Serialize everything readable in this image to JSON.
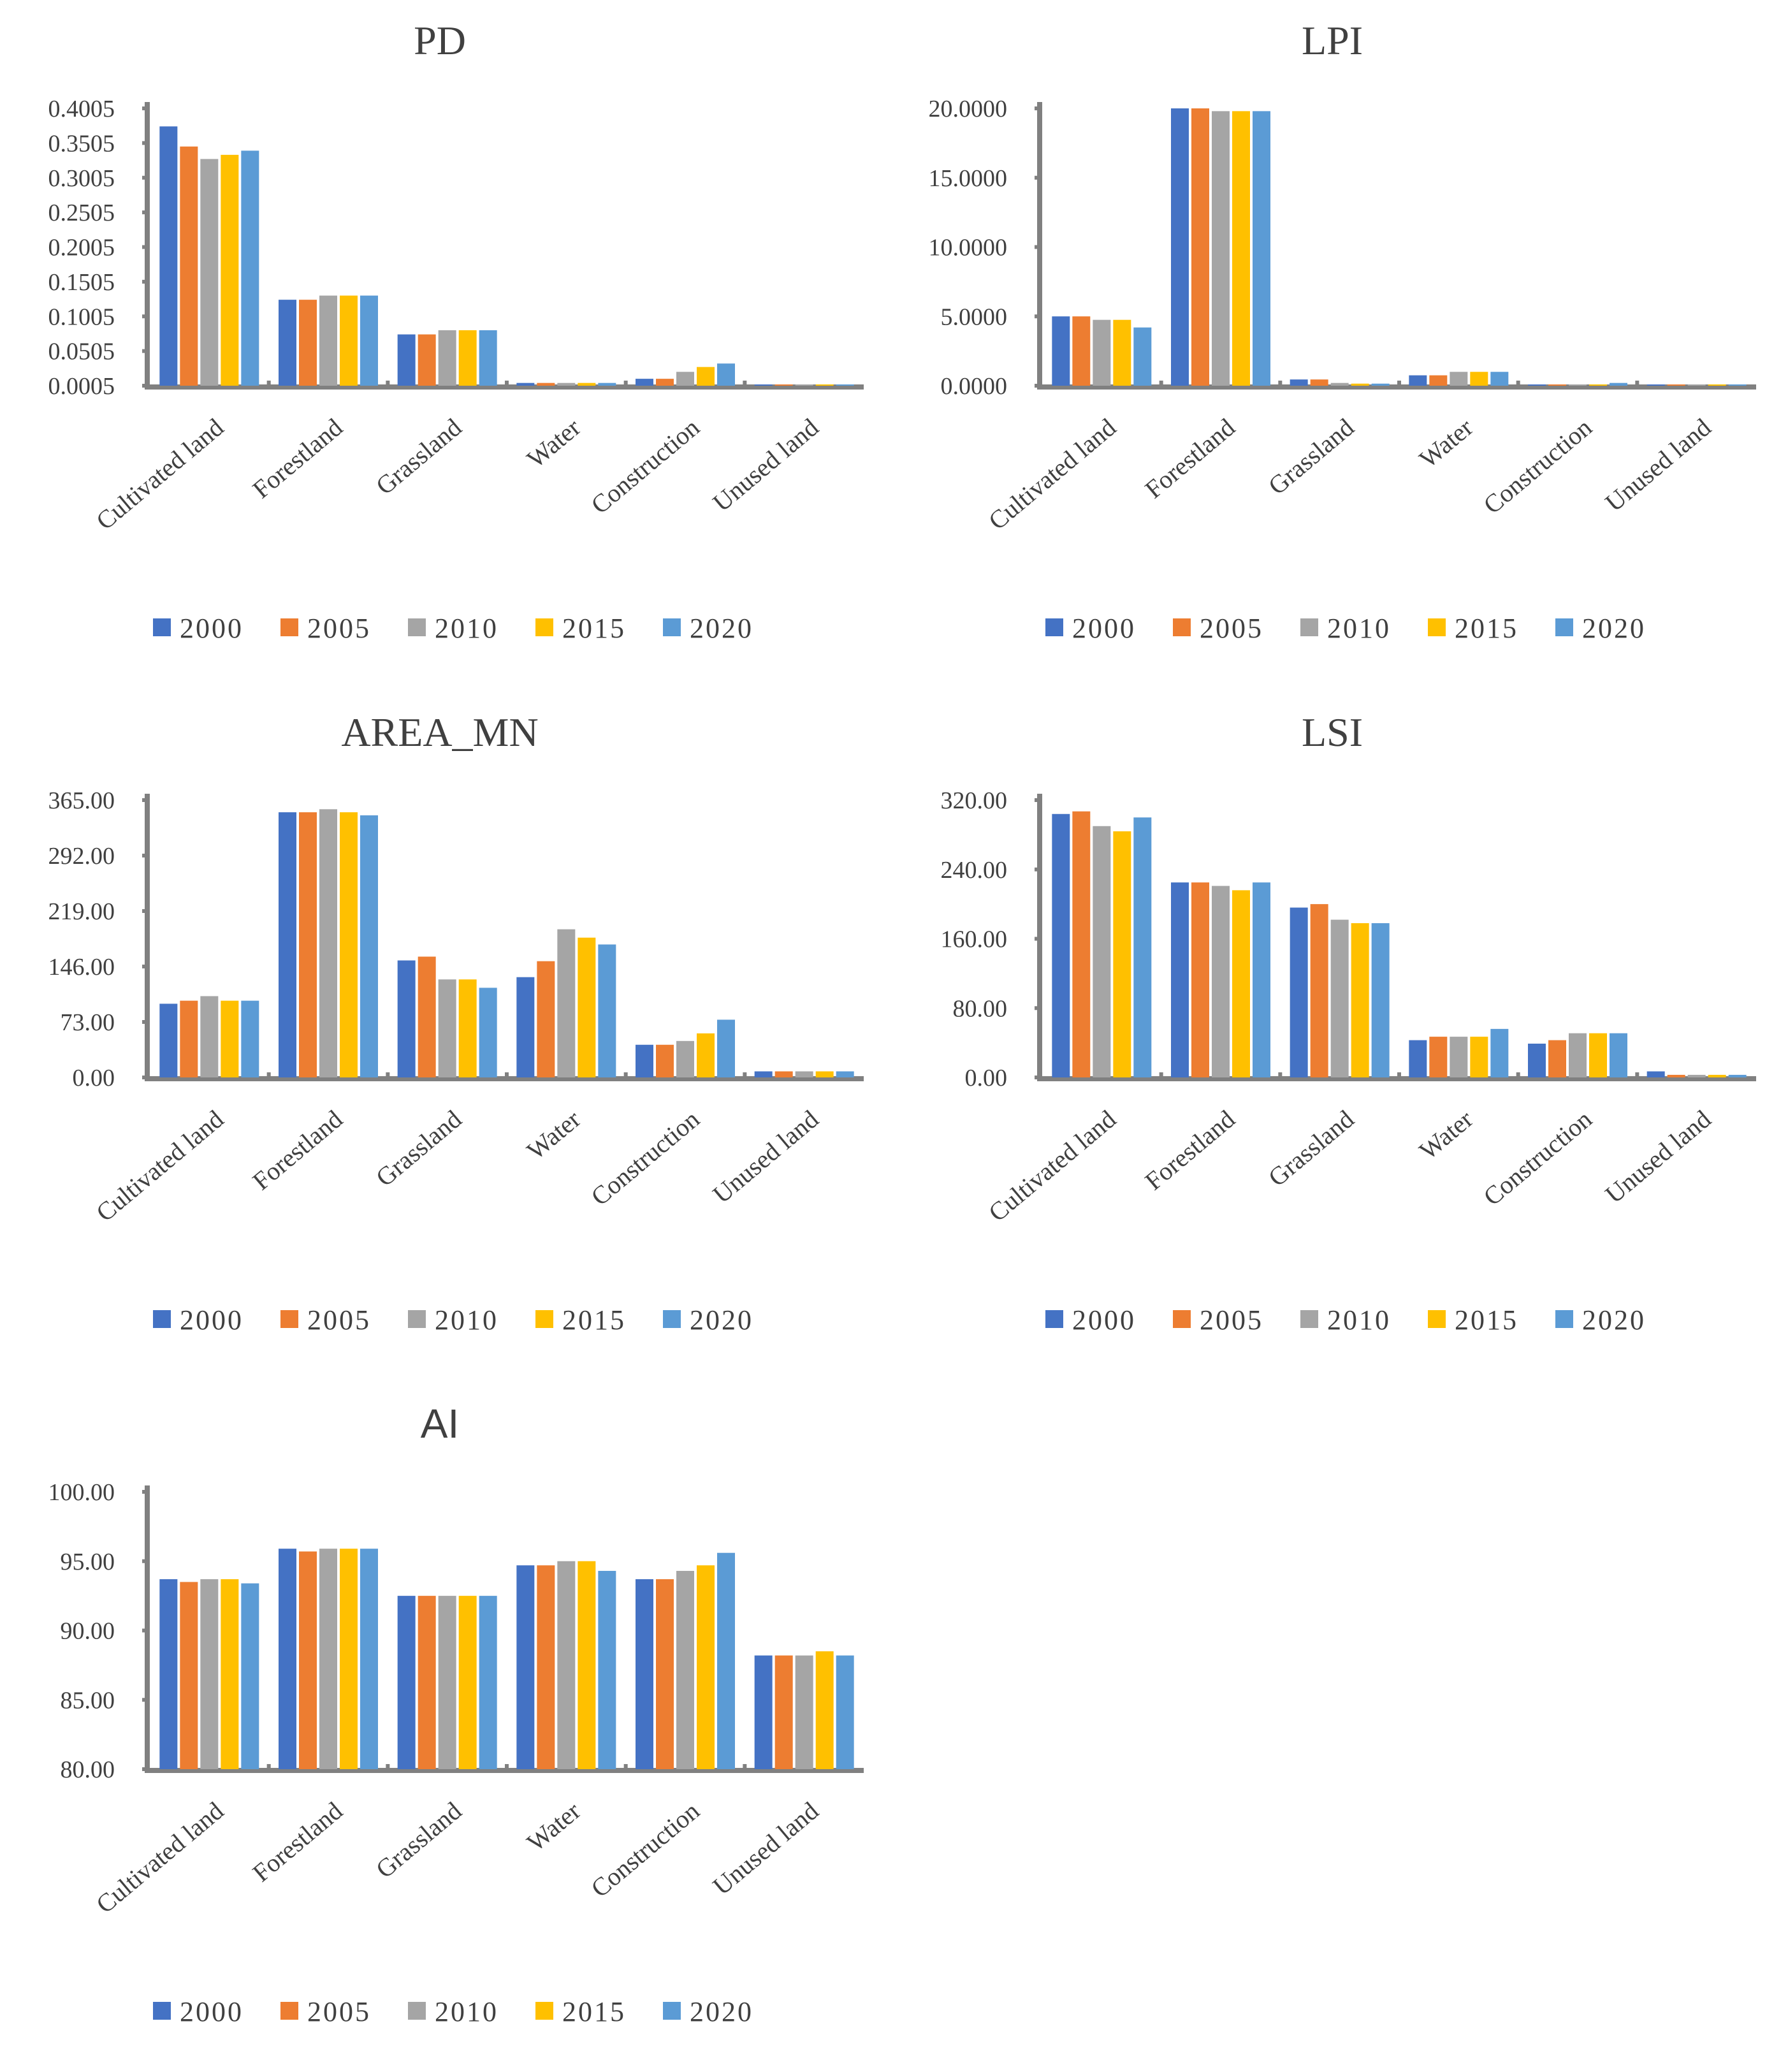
{
  "colors": {
    "2000": "#4472C4",
    "2005": "#ED7D31",
    "2010": "#A5A5A5",
    "2015": "#FFC000",
    "2020": "#5B9BD5",
    "axis": "#808080",
    "text": "#404040"
  },
  "chart_data": [
    {
      "type": "bar",
      "title": "PD",
      "categories": [
        "Cultivated land",
        "Forestland",
        "Grassland",
        "Water",
        "Construction",
        "Unused land"
      ],
      "ylim": [
        0.0005,
        0.4005
      ],
      "yticks": [
        "0.0005",
        "0.0505",
        "0.1005",
        "0.1505",
        "0.2005",
        "0.2505",
        "0.3005",
        "0.3505",
        "0.4005"
      ],
      "series": [
        {
          "name": "2000",
          "values": [
            0.3745,
            0.1245,
            0.0745,
            0.0045,
            0.0105,
            0.0005
          ]
        },
        {
          "name": "2005",
          "values": [
            0.3455,
            0.1245,
            0.0745,
            0.0045,
            0.0105,
            0.0005
          ]
        },
        {
          "name": "2010",
          "values": [
            0.3275,
            0.1305,
            0.0805,
            0.0045,
            0.0205,
            0.0005
          ]
        },
        {
          "name": "2015",
          "values": [
            0.3335,
            0.1305,
            0.0805,
            0.0045,
            0.0275,
            0.0005
          ]
        },
        {
          "name": "2020",
          "values": [
            0.3395,
            0.1305,
            0.0805,
            0.0045,
            0.0325,
            0.0005
          ]
        }
      ],
      "legend": [
        "2000",
        "2005",
        "2010",
        "2015",
        "2020"
      ]
    },
    {
      "type": "bar",
      "title": "LPI",
      "categories": [
        "Cultivated land",
        "Forestland",
        "Grassland",
        "Water",
        "Construction",
        "Unused land"
      ],
      "ylim": [
        0,
        20
      ],
      "yticks": [
        "0.0000",
        "5.0000",
        "10.0000",
        "15.0000",
        "20.0000"
      ],
      "series": [
        {
          "name": "2000",
          "values": [
            5.0,
            20.0,
            0.45,
            0.75,
            0.05,
            0.02
          ]
        },
        {
          "name": "2005",
          "values": [
            5.0,
            20.0,
            0.45,
            0.75,
            0.05,
            0.02
          ]
        },
        {
          "name": "2010",
          "values": [
            4.75,
            19.8,
            0.2,
            1.0,
            0.05,
            0.02
          ]
        },
        {
          "name": "2015",
          "values": [
            4.75,
            19.8,
            0.15,
            1.0,
            0.05,
            0.02
          ]
        },
        {
          "name": "2020",
          "values": [
            4.2,
            19.8,
            0.15,
            1.0,
            0.2,
            0.02
          ]
        }
      ],
      "legend": [
        "2000",
        "2005",
        "2010",
        "2015",
        "2020"
      ]
    },
    {
      "type": "bar",
      "title": "AREA_MN",
      "categories": [
        "Cultivated land",
        "Forestland",
        "Grassland",
        "Water",
        "Construction",
        "Unused land"
      ],
      "ylim": [
        0,
        365
      ],
      "yticks": [
        "0.00",
        "73.00",
        "146.00",
        "219.00",
        "292.00",
        "365.00"
      ],
      "series": [
        {
          "name": "2000",
          "values": [
            97,
            349,
            154,
            132,
            43,
            8
          ]
        },
        {
          "name": "2005",
          "values": [
            101,
            349,
            159,
            153,
            43,
            8
          ]
        },
        {
          "name": "2010",
          "values": [
            107,
            353,
            129,
            195,
            48,
            8
          ]
        },
        {
          "name": "2015",
          "values": [
            101,
            349,
            129,
            184,
            58,
            8
          ]
        },
        {
          "name": "2020",
          "values": [
            101,
            345,
            118,
            175,
            76,
            8
          ]
        }
      ],
      "legend": [
        "2000",
        "2005",
        "2010",
        "2015",
        "2020"
      ]
    },
    {
      "type": "bar",
      "title": "LSI",
      "categories": [
        "Cultivated land",
        "Forestland",
        "Grassland",
        "Water",
        "Construction",
        "Unused land"
      ],
      "ylim": [
        0,
        320
      ],
      "yticks": [
        "0.00",
        "80.00",
        "160.00",
        "240.00",
        "320.00"
      ],
      "series": [
        {
          "name": "2000",
          "values": [
            304,
            225,
            196,
            43,
            39,
            7
          ]
        },
        {
          "name": "2005",
          "values": [
            307,
            225,
            200,
            47,
            43,
            3
          ]
        },
        {
          "name": "2010",
          "values": [
            290,
            221,
            182,
            47,
            51,
            3
          ]
        },
        {
          "name": "2015",
          "values": [
            284,
            216,
            178,
            47,
            51,
            3
          ]
        },
        {
          "name": "2020",
          "values": [
            300,
            225,
            178,
            56,
            51,
            3
          ]
        }
      ],
      "legend": [
        "2000",
        "2005",
        "2010",
        "2015",
        "2020"
      ]
    },
    {
      "type": "bar",
      "title": "AI",
      "categories": [
        "Cultivated land",
        "Forestland",
        "Grassland",
        "Water",
        "Construction",
        "Unused land"
      ],
      "ylim": [
        80,
        100
      ],
      "yticks": [
        "80.00",
        "85.00",
        "90.00",
        "95.00",
        "100.00"
      ],
      "series": [
        {
          "name": "2000",
          "values": [
            93.7,
            95.9,
            92.5,
            94.7,
            93.7,
            88.2
          ]
        },
        {
          "name": "2005",
          "values": [
            93.5,
            95.7,
            92.5,
            94.7,
            93.7,
            88.2
          ]
        },
        {
          "name": "2010",
          "values": [
            93.7,
            95.9,
            92.5,
            95.0,
            94.3,
            88.2
          ]
        },
        {
          "name": "2015",
          "values": [
            93.7,
            95.9,
            92.5,
            95.0,
            94.7,
            88.5
          ]
        },
        {
          "name": "2020",
          "values": [
            93.4,
            95.9,
            92.5,
            94.3,
            95.6,
            88.2
          ]
        }
      ],
      "legend": [
        "2000",
        "2005",
        "2010",
        "2015",
        "2020"
      ]
    }
  ]
}
